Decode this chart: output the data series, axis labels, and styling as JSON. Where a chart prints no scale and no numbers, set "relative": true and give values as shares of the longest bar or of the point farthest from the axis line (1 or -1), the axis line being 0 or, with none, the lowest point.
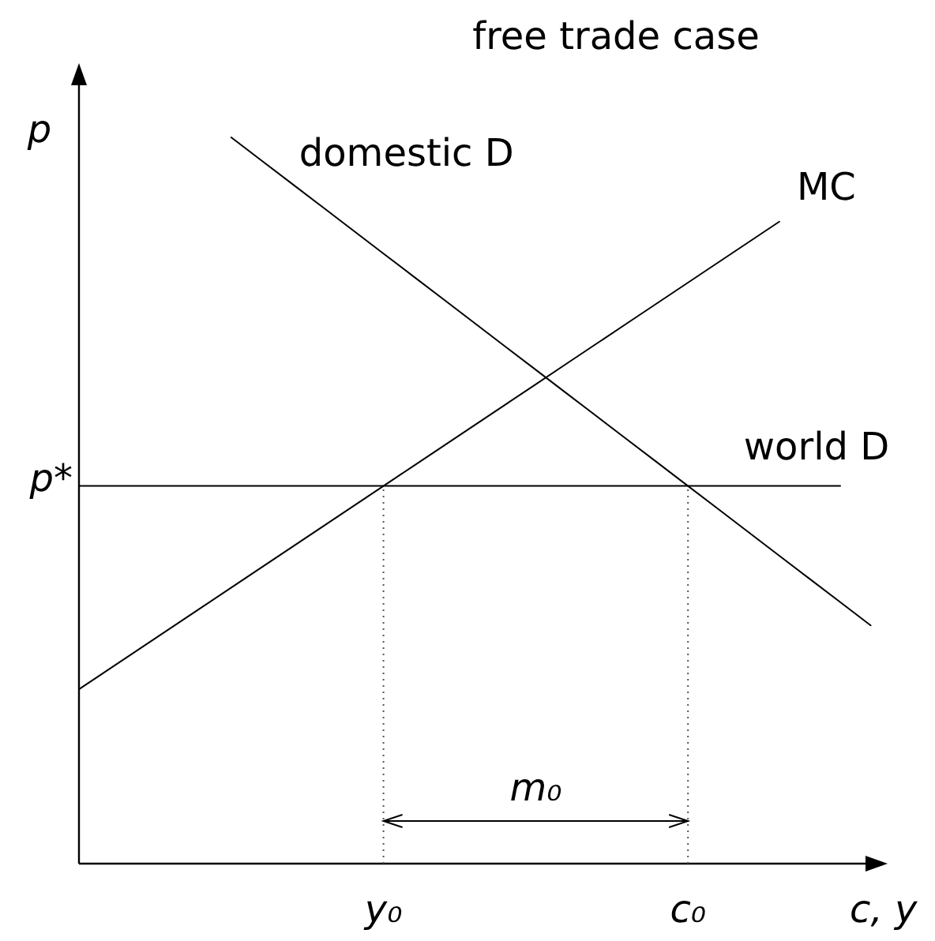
{
  "chart_data": {
    "type": "line",
    "title": "free trade case",
    "xlabel": "c, y",
    "ylabel": "p",
    "relative": true,
    "line_style": "solid",
    "categories": [
      null,
      null,
      null,
      null,
      null,
      null,
      null,
      null,
      null,
      null,
      "y₀",
      null,
      null,
      null,
      null,
      null,
      null,
      null,
      null,
      null,
      "c₀",
      null,
      null,
      null,
      null,
      null,
      null
    ],
    "series": [
      {
        "name": "domestic D",
        "color": "#000000",
        "values": [
          null,
          null,
          null,
          null,
          null,
          1,
          0.968,
          0.936,
          0.904,
          0.872,
          0.84,
          0.808,
          0.776,
          0.744,
          0.712,
          0.68,
          0.648,
          0.616,
          0.584,
          0.552,
          0.52,
          0.488,
          0.456,
          0.424,
          0.392,
          0.36,
          0.328
        ]
      },
      {
        "name": "MC",
        "color": "#000000",
        "values": [
          0.24,
          0.268,
          0.296,
          0.324,
          0.352,
          0.38,
          0.408,
          0.436,
          0.464,
          0.492,
          0.52,
          0.548,
          0.576,
          0.604,
          0.632,
          0.66,
          0.688,
          0.716,
          0.744,
          0.772,
          0.8,
          0.828,
          0.856,
          0.884,
          null,
          null,
          null
        ]
      },
      {
        "name": "world D",
        "color": "#000000",
        "values": [
          0.52,
          0.52,
          0.52,
          0.52,
          0.52,
          0.52,
          0.52,
          0.52,
          0.52,
          0.52,
          0.52,
          0.52,
          0.52,
          0.52,
          0.52,
          0.52,
          0.52,
          0.52,
          0.52,
          0.52,
          0.52,
          0.52,
          0.52,
          0.52,
          0.52,
          0.52,
          null
        ]
      }
    ],
    "ref_lines": [
      {
        "axis": "x",
        "value": "y₀",
        "color": "#555555",
        "line_style": "dotted"
      },
      {
        "axis": "x",
        "value": "c₀",
        "color": "#555555",
        "line_style": "dotted"
      }
    ],
    "annotations": [
      "p*",
      "m₀"
    ]
  }
}
